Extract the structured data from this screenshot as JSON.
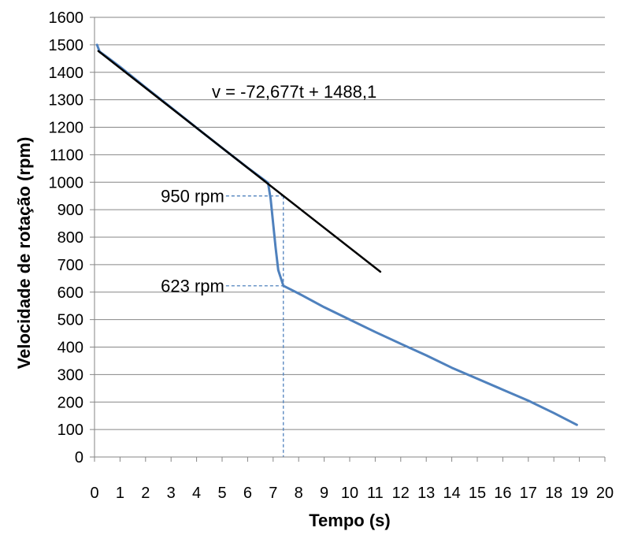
{
  "chart_data": {
    "type": "line",
    "xlabel": "Tempo (s)",
    "ylabel": "Velocidade de rotação (rpm)",
    "xlim": [
      0,
      20
    ],
    "ylim": [
      0,
      1600
    ],
    "x_ticks": [
      0,
      1,
      2,
      3,
      4,
      5,
      6,
      7,
      8,
      9,
      10,
      11,
      12,
      13,
      14,
      15,
      16,
      17,
      18,
      19,
      20
    ],
    "y_ticks": [
      0,
      100,
      200,
      300,
      400,
      500,
      600,
      700,
      800,
      900,
      1000,
      1100,
      1200,
      1300,
      1400,
      1500,
      1600
    ],
    "grid": "horizontal",
    "colors": {
      "measured": "#4f81bd",
      "fit": "#000000",
      "guide": "#4f81bd"
    },
    "series": [
      {
        "type": "line",
        "points": [
          [
            0.1,
            1500
          ],
          [
            0.2,
            1475
          ],
          [
            0.5,
            1455
          ],
          [
            1,
            1420
          ],
          [
            2,
            1345
          ],
          [
            3,
            1272
          ],
          [
            4,
            1198
          ],
          [
            5,
            1125
          ],
          [
            6,
            1053
          ],
          [
            6.8,
            998
          ],
          [
            6.9,
            940
          ],
          [
            7.0,
            850
          ],
          [
            7.1,
            760
          ],
          [
            7.2,
            680
          ],
          [
            7.4,
            623
          ],
          [
            8,
            595
          ],
          [
            9,
            545
          ],
          [
            10,
            500
          ],
          [
            11,
            455
          ],
          [
            12,
            412
          ],
          [
            13,
            370
          ],
          [
            14,
            325
          ],
          [
            15,
            285
          ],
          [
            16,
            245
          ],
          [
            17,
            205
          ],
          [
            18,
            160
          ],
          [
            18.9,
            117
          ]
        ]
      },
      {
        "type": "line",
        "points": [
          [
            0.15,
            1477.2
          ],
          [
            11.2,
            674.1
          ]
        ]
      }
    ],
    "annotations": [
      {
        "text": "v = -72,677t + 1488,1",
        "x": 4.6,
        "y": 1330
      },
      {
        "text": "950 rpm",
        "x": 7.4,
        "y": 950
      },
      {
        "text": "623 rpm",
        "x": 7.4,
        "y": 623
      }
    ]
  }
}
